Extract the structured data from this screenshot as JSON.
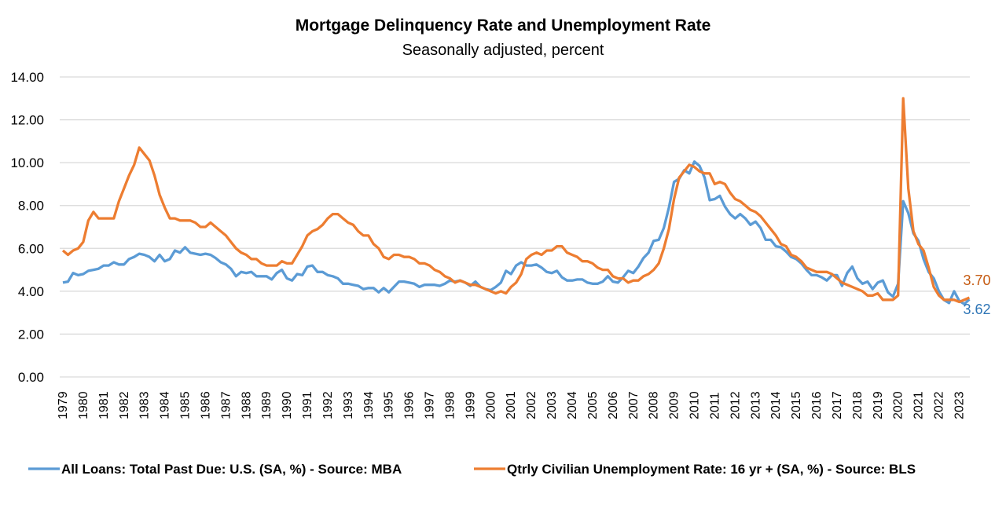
{
  "chart_data": {
    "type": "line",
    "title": "Mortgage Delinquency Rate and Unemployment Rate",
    "subtitle": "Seasonally adjusted, percent",
    "frequency": "quarterly",
    "ylim": [
      0,
      14
    ],
    "yticks": [
      "0.00",
      "2.00",
      "4.00",
      "6.00",
      "8.00",
      "10.00",
      "12.00",
      "14.00"
    ],
    "xtick_labels": [
      "1979",
      "1980",
      "1981",
      "1982",
      "1983",
      "1984",
      "1985",
      "1986",
      "1987",
      "1988",
      "1989",
      "1990",
      "1991",
      "1992",
      "1993",
      "1994",
      "1995",
      "1996",
      "1997",
      "1998",
      "1999",
      "2000",
      "2001",
      "2002",
      "2003",
      "2004",
      "2005",
      "2006",
      "2007",
      "2008",
      "2009",
      "2010",
      "2011",
      "2012",
      "2013",
      "2014",
      "2015",
      "2016",
      "2017",
      "2018",
      "2019",
      "2020",
      "2021",
      "2022",
      "2023"
    ],
    "grid": true,
    "legend_position": "bottom",
    "series": [
      {
        "name": "All Loans: Total Past Due: U.S. (SA, %) - Source: MBA",
        "color": "#5B9BD5",
        "last_label": "3.62",
        "label_color": "#2E75B6",
        "values": [
          4.4,
          4.45,
          4.85,
          4.75,
          4.8,
          4.95,
          5.0,
          5.05,
          5.2,
          5.2,
          5.35,
          5.25,
          5.25,
          5.5,
          5.6,
          5.75,
          5.7,
          5.6,
          5.4,
          5.7,
          5.4,
          5.5,
          5.9,
          5.8,
          6.05,
          5.8,
          5.75,
          5.7,
          5.75,
          5.7,
          5.55,
          5.35,
          5.25,
          5.05,
          4.7,
          4.9,
          4.85,
          4.9,
          4.7,
          4.7,
          4.7,
          4.55,
          4.85,
          5.0,
          4.6,
          4.5,
          4.8,
          4.75,
          5.15,
          5.2,
          4.9,
          4.9,
          4.75,
          4.7,
          4.6,
          4.35,
          4.35,
          4.3,
          4.25,
          4.1,
          4.15,
          4.15,
          3.95,
          4.15,
          3.95,
          4.2,
          4.45,
          4.45,
          4.4,
          4.35,
          4.2,
          4.3,
          4.3,
          4.3,
          4.25,
          4.35,
          4.5,
          4.45,
          4.5,
          4.4,
          4.25,
          4.45,
          4.2,
          4.1,
          4.05,
          4.2,
          4.4,
          4.95,
          4.8,
          5.2,
          5.35,
          5.2,
          5.2,
          5.25,
          5.1,
          4.9,
          4.85,
          4.95,
          4.65,
          4.5,
          4.5,
          4.55,
          4.55,
          4.4,
          4.35,
          4.35,
          4.45,
          4.7,
          4.45,
          4.4,
          4.65,
          4.95,
          4.85,
          5.15,
          5.55,
          5.8,
          6.35,
          6.4,
          6.95,
          7.9,
          9.1,
          9.25,
          9.65,
          9.5,
          10.05,
          9.85,
          9.3,
          8.25,
          8.3,
          8.45,
          7.95,
          7.6,
          7.4,
          7.6,
          7.4,
          7.1,
          7.25,
          6.95,
          6.4,
          6.4,
          6.1,
          6.05,
          5.85,
          5.6,
          5.5,
          5.3,
          5.0,
          4.75,
          4.75,
          4.65,
          4.5,
          4.75,
          4.75,
          4.25,
          4.85,
          5.15,
          4.6,
          4.35,
          4.45,
          4.1,
          4.4,
          4.5,
          3.95,
          3.75,
          4.35,
          8.2,
          7.65,
          6.7,
          6.35,
          5.5,
          4.9,
          4.6,
          4.0,
          3.6,
          3.45,
          4.0,
          3.55,
          3.4,
          3.62
        ]
      },
      {
        "name": "Qtrly Civilian Unemployment Rate: 16 yr + (SA, %) - Source: BLS",
        "color": "#ED7D31",
        "last_label": "3.70",
        "label_color": "#C55A11",
        "values": [
          5.9,
          5.7,
          5.9,
          6.0,
          6.3,
          7.3,
          7.7,
          7.4,
          7.4,
          7.4,
          7.4,
          8.2,
          8.8,
          9.4,
          9.9,
          10.7,
          10.4,
          10.1,
          9.4,
          8.5,
          7.9,
          7.4,
          7.4,
          7.3,
          7.3,
          7.3,
          7.2,
          7.0,
          7.0,
          7.2,
          7.0,
          6.8,
          6.6,
          6.3,
          6.0,
          5.8,
          5.7,
          5.5,
          5.5,
          5.3,
          5.2,
          5.2,
          5.2,
          5.4,
          5.3,
          5.3,
          5.7,
          6.1,
          6.6,
          6.8,
          6.9,
          7.1,
          7.4,
          7.6,
          7.6,
          7.4,
          7.2,
          7.1,
          6.8,
          6.6,
          6.6,
          6.2,
          6.0,
          5.6,
          5.5,
          5.7,
          5.7,
          5.6,
          5.6,
          5.5,
          5.3,
          5.3,
          5.2,
          5.0,
          4.9,
          4.7,
          4.6,
          4.4,
          4.5,
          4.4,
          4.3,
          4.3,
          4.2,
          4.1,
          4.0,
          3.9,
          4.0,
          3.9,
          4.2,
          4.4,
          4.8,
          5.5,
          5.7,
          5.8,
          5.7,
          5.9,
          5.9,
          6.1,
          6.1,
          5.8,
          5.7,
          5.6,
          5.4,
          5.4,
          5.3,
          5.1,
          5.0,
          5.0,
          4.7,
          4.6,
          4.6,
          4.4,
          4.5,
          4.5,
          4.7,
          4.8,
          5.0,
          5.3,
          6.0,
          6.9,
          8.3,
          9.3,
          9.6,
          9.9,
          9.8,
          9.6,
          9.5,
          9.5,
          9.0,
          9.1,
          9.0,
          8.6,
          8.3,
          8.2,
          8.0,
          7.8,
          7.7,
          7.5,
          7.2,
          6.9,
          6.6,
          6.2,
          6.1,
          5.7,
          5.6,
          5.4,
          5.1,
          5.0,
          4.9,
          4.9,
          4.9,
          4.8,
          4.6,
          4.4,
          4.3,
          4.2,
          4.1,
          4.0,
          3.8,
          3.8,
          3.9,
          3.6,
          3.6,
          3.6,
          3.8,
          13.0,
          8.8,
          6.8,
          6.2,
          5.9,
          5.1,
          4.2,
          3.8,
          3.6,
          3.6,
          3.6,
          3.5,
          3.6,
          3.7
        ]
      }
    ]
  }
}
